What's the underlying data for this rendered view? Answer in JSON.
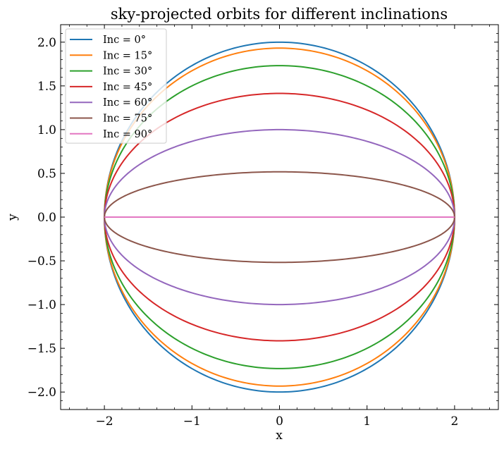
{
  "chart_data": {
    "type": "line",
    "title": "sky-projected orbits for different inclinations",
    "xlabel": "x",
    "ylabel": "y",
    "xlim": [
      -2.5,
      2.5
    ],
    "ylim": [
      -2.2,
      2.2
    ],
    "xticks": [
      -2,
      -1,
      0,
      1,
      2
    ],
    "xtick_labels": [
      "−2",
      "−1",
      "0",
      "1",
      "2"
    ],
    "yticks": [
      2.0,
      1.5,
      1.0,
      0.5,
      0.0,
      -0.5,
      -1.0,
      -1.5,
      -2.0
    ],
    "ytick_labels": [
      "2.0",
      "1.5",
      "1.0",
      "0.5",
      "0.0",
      "−0.5",
      "−1.0",
      "−1.5",
      "−2.0"
    ],
    "grid": false,
    "legend_position": "top-left",
    "orbit_radius": 2,
    "series": [
      {
        "name": "Inc = 0°",
        "inclination_deg": 0,
        "color": "#1f77b4"
      },
      {
        "name": "Inc = 15°",
        "inclination_deg": 15,
        "color": "#ff7f0e"
      },
      {
        "name": "Inc = 30°",
        "inclination_deg": 30,
        "color": "#2ca02c"
      },
      {
        "name": "Inc = 45°",
        "inclination_deg": 45,
        "color": "#d62728"
      },
      {
        "name": "Inc = 60°",
        "inclination_deg": 60,
        "color": "#9467bd"
      },
      {
        "name": "Inc = 75°",
        "inclination_deg": 75,
        "color": "#8c564b"
      },
      {
        "name": "Inc = 90°",
        "inclination_deg": 90,
        "color": "#e377c2"
      }
    ]
  }
}
